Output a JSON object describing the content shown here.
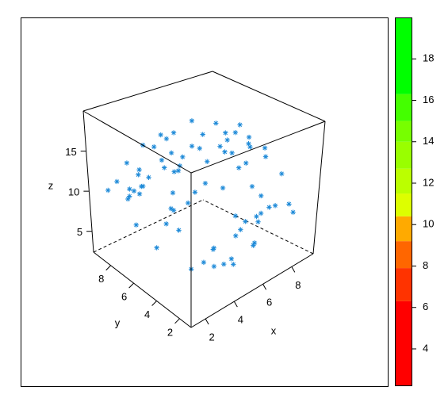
{
  "chart_data": {
    "type": "scatter3d",
    "x_label": "x",
    "y_label": "y",
    "z_label": "z",
    "xlim": [
      1,
      9.5
    ],
    "ylim": [
      1,
      9.5
    ],
    "zlim": [
      2.4,
      20
    ],
    "xticks": [
      2,
      4,
      6,
      8
    ],
    "yticks": [
      2,
      4,
      6,
      8
    ],
    "zticks": [
      5,
      10,
      15
    ],
    "series": [
      {
        "color": "#1E8AD8",
        "x": [
          3.2,
          5.1,
          7.4,
          2.1,
          8.3,
          6.0,
          4.4,
          1.8,
          9.0,
          5.6,
          3.9,
          7.0,
          2.6,
          8.8,
          4.8,
          6.7,
          1.5,
          3.5,
          7.9,
          5.3,
          2.9,
          6.3,
          8.1,
          4.1,
          1.9,
          9.2,
          5.8,
          3.3,
          7.6,
          2.4,
          6.9,
          4.6,
          8.5,
          1.6,
          5.0,
          3.7,
          7.2,
          2.2,
          6.5,
          4.3,
          8.9,
          2.8,
          5.5,
          7.7,
          3.0,
          6.1,
          1.7,
          4.9,
          8.0,
          2.5,
          5.9,
          7.3,
          3.6,
          6.8,
          1.4,
          4.0,
          9.1,
          2.7,
          5.2,
          7.1,
          3.4,
          6.4,
          8.6,
          4.7,
          2.0,
          5.7,
          7.8,
          3.1,
          6.2,
          8.2,
          4.5,
          1.3,
          5.4,
          7.5,
          2.3,
          6.6,
          3.8,
          8.7,
          4.2,
          6.9
        ],
        "y": [
          7.1,
          2.3,
          5.8,
          4.4,
          8.2,
          1.9,
          6.5,
          3.0,
          4.7,
          8.9,
          2.6,
          6.9,
          5.3,
          3.4,
          7.7,
          1.6,
          6.2,
          4.0,
          8.4,
          2.8,
          7.5,
          5.1,
          3.7,
          9.0,
          2.1,
          6.0,
          4.9,
          8.0,
          1.8,
          5.6,
          3.2,
          7.3,
          4.2,
          8.6,
          6.7,
          2.4,
          5.0,
          3.9,
          8.8,
          1.5,
          7.0,
          2.9,
          4.5,
          6.3,
          8.1,
          3.5,
          5.9,
          2.0,
          6.6,
          7.9,
          1.7,
          4.8,
          3.1,
          8.5,
          5.4,
          6.1,
          2.7,
          4.1,
          7.6,
          3.8,
          9.1,
          2.2,
          5.5,
          4.6,
          8.3,
          6.8,
          3.3,
          5.2,
          7.2,
          1.4,
          2.5,
          6.4,
          9.2,
          4.3,
          7.8,
          3.6,
          1.9,
          5.7,
          8.7,
          2.6
        ],
        "z": [
          12.5,
          8.1,
          15.3,
          10.2,
          9.7,
          6.4,
          17.8,
          11.0,
          13.9,
          14.6,
          5.2,
          9.0,
          16.7,
          7.5,
          12.0,
          10.8,
          8.8,
          18.9,
          11.6,
          4.6,
          13.3,
          15.9,
          6.9,
          10.4,
          7.2,
          12.8,
          19.4,
          9.5,
          14.1,
          5.9,
          11.9,
          16.2,
          8.4,
          10.6,
          13.0,
          7.8,
          17.1,
          12.2,
          9.2,
          6.1,
          11.4,
          14.8,
          4.0,
          15.6,
          10.0,
          8.6,
          13.6,
          16.9,
          12.6,
          9.9,
          7.0,
          18.2,
          5.5,
          11.2,
          14.3,
          10.9,
          8.0,
          16.4,
          13.7,
          6.7,
          12.3,
          9.4,
          15.0,
          19.0,
          11.7,
          7.6,
          14.9,
          10.5,
          17.5,
          8.9,
          5.0,
          13.1,
          12.9,
          16.0,
          9.8,
          6.3,
          15.4,
          11.3,
          14.4,
          7.9
        ]
      }
    ],
    "colorbar": {
      "breaks": [
        2.2,
        6.3,
        7.9,
        9.2,
        10.4,
        11.5,
        12.7,
        14,
        15,
        16.3,
        20
      ],
      "colors": [
        "#FF0000",
        "#FF3300",
        "#FF6600",
        "#FFAA00",
        "#DDFF00",
        "#BBFF00",
        "#99FF00",
        "#77FF00",
        "#44FF00",
        "#00FF00"
      ],
      "ticks": [
        4,
        6,
        8,
        10,
        12,
        14,
        16,
        18
      ]
    }
  }
}
